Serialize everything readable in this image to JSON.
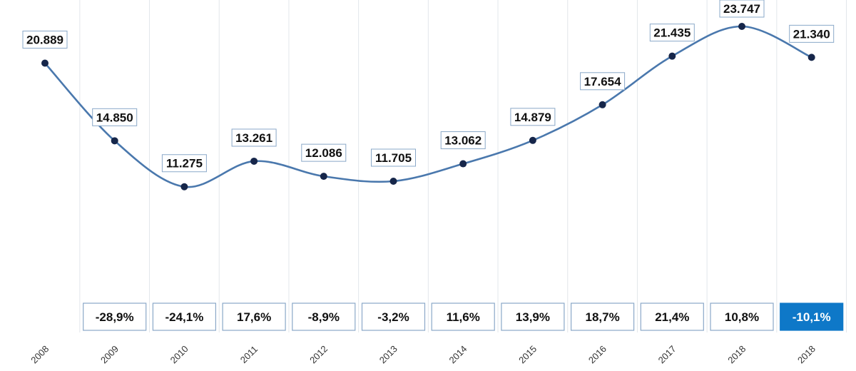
{
  "chart_data": {
    "type": "line",
    "categories": [
      "2008",
      "2009",
      "2010",
      "2011",
      "2012",
      "2013",
      "2014",
      "2015",
      "2016",
      "2017",
      "2018",
      "2018"
    ],
    "series": [
      {
        "values": [
          20889,
          14850,
          11275,
          13261,
          12086,
          11705,
          13062,
          14879,
          17654,
          21435,
          23747,
          21340
        ],
        "value_labels": [
          "20.889",
          "14.850",
          "11.275",
          "13.261",
          "12.086",
          "11.705",
          "13.062",
          "14.879",
          "17.654",
          "21.435",
          "23.747",
          "21.340"
        ]
      }
    ],
    "change_labels": [
      "",
      "-28,9%",
      "-24,1%",
      "17,6%",
      "-8,9%",
      "-3,2%",
      "11,6%",
      "13,9%",
      "18,7%",
      "21,4%",
      "10,8%",
      "-10,1%"
    ],
    "change_values": [
      null,
      -28.9,
      -24.1,
      17.6,
      -8.9,
      -3.2,
      11.6,
      13.9,
      18.7,
      21.4,
      10.8,
      -10.1
    ],
    "highlighted_change_index": 11,
    "title": "",
    "xlabel": "",
    "ylabel": "",
    "y_axis_visible": false,
    "grid": "vertical",
    "colors": {
      "line": "#4a78ad",
      "point": "#16264a",
      "box_border": "#8aa8c8",
      "highlight": "#0e78c8",
      "grid": "#e2e6ea"
    }
  }
}
